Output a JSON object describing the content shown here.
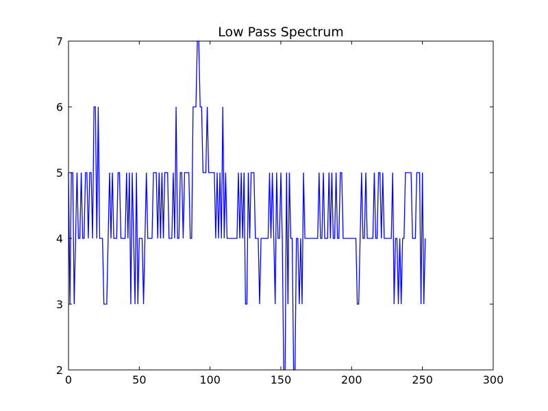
{
  "chart_data": {
    "type": "line",
    "title": "Low Pass Spectrum",
    "xlabel": "",
    "ylabel": "",
    "xlim": [
      0,
      300
    ],
    "ylim": [
      2,
      7
    ],
    "xticks": [
      0,
      50,
      100,
      150,
      200,
      250,
      300
    ],
    "yticks": [
      2,
      3,
      4,
      5,
      6,
      7
    ],
    "grid": false,
    "series": [
      {
        "color": "#0000ff",
        "x_start": 0,
        "x_step": 1,
        "values": [
          5,
          3,
          5,
          5,
          3,
          4,
          5,
          4,
          4,
          5,
          4,
          4,
          5,
          5,
          4,
          5,
          5,
          4,
          6,
          6,
          4,
          6,
          4,
          4,
          4,
          3,
          3,
          3,
          4,
          5,
          4,
          5,
          4,
          4,
          4,
          5,
          5,
          4,
          4,
          4,
          4,
          5,
          4,
          5,
          3,
          5,
          4,
          3,
          5,
          3,
          4,
          4,
          4,
          3,
          4,
          5,
          4,
          4,
          4,
          4,
          5,
          5,
          5,
          4,
          5,
          4,
          5,
          4,
          5,
          5,
          5,
          4,
          4,
          4,
          5,
          4,
          6,
          4,
          4,
          5,
          5,
          4,
          5,
          5,
          5,
          5,
          4,
          4,
          6,
          6,
          6,
          7,
          7,
          6,
          6,
          5,
          5,
          5,
          6,
          5,
          5,
          5,
          5,
          5,
          4,
          5,
          4,
          5,
          4,
          6,
          4,
          5,
          4,
          4,
          4,
          4,
          4,
          4,
          4,
          4,
          5,
          4,
          5,
          4,
          5,
          3,
          3,
          5,
          4,
          5,
          5,
          5,
          4,
          4,
          4,
          3,
          4,
          4,
          4,
          4,
          4,
          4,
          5,
          4,
          5,
          4,
          3,
          5,
          4,
          4,
          5,
          4,
          2,
          2,
          5,
          3,
          5,
          4,
          4,
          2,
          2,
          4,
          4,
          3,
          4,
          3,
          5,
          4,
          4,
          4,
          4,
          4,
          4,
          4,
          4,
          4,
          4,
          5,
          4,
          4,
          5,
          4,
          4,
          4,
          5,
          4,
          5,
          4,
          4,
          5,
          4,
          4,
          5,
          5,
          4,
          4,
          4,
          4,
          4,
          4,
          4,
          4,
          4,
          4,
          3,
          3,
          4,
          5,
          4,
          4,
          5,
          4,
          4,
          4,
          4,
          4,
          5,
          4,
          4,
          5,
          5,
          4,
          5,
          4,
          4,
          4,
          4,
          4,
          4,
          5,
          3,
          4,
          4,
          3,
          4,
          3,
          4,
          4,
          5,
          5,
          5,
          5,
          5,
          4,
          4,
          4,
          5,
          5,
          5,
          3,
          5,
          3,
          4
        ]
      }
    ]
  }
}
